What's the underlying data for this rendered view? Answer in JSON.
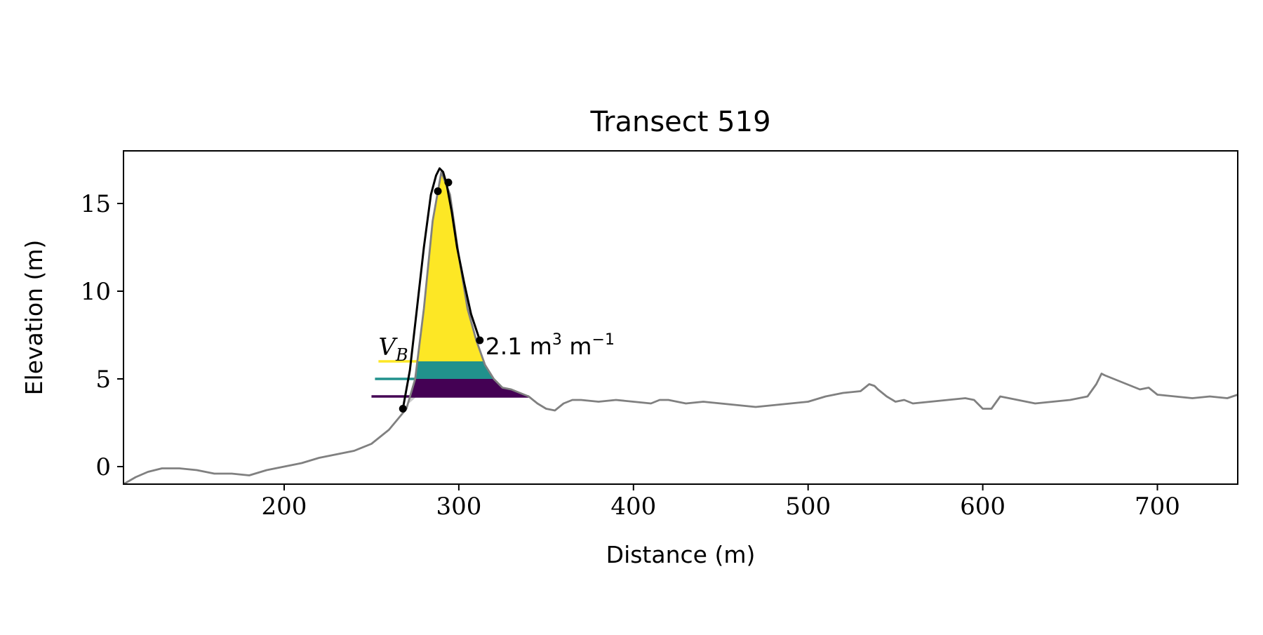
{
  "chart_data": {
    "type": "line",
    "title": "Transect 519",
    "xlabel": "Distance (m)",
    "ylabel": "Elevation (m)",
    "xlim": [
      108,
      746
    ],
    "ylim": [
      -1,
      18
    ],
    "xticks": [
      200,
      300,
      400,
      500,
      600,
      700
    ],
    "yticks": [
      0,
      5,
      10,
      15
    ],
    "grid": false,
    "legend": "none",
    "colors": {
      "profile": "#808080",
      "dune_outline": "#000000",
      "markers": "#000000",
      "level_high": "#fde725",
      "level_mid": "#21918c",
      "level_low": "#440154",
      "under_base_shade": "#cccccc"
    },
    "series": [
      {
        "role": "profile",
        "x": [
          108,
          115,
          122,
          130,
          140,
          150,
          160,
          170,
          180,
          190,
          200,
          210,
          220,
          230,
          240,
          250,
          260,
          265,
          270,
          275,
          280,
          285,
          290,
          295,
          300,
          305,
          310,
          315,
          320,
          325,
          330,
          335,
          340,
          345,
          350,
          355,
          360,
          365,
          370,
          380,
          390,
          400,
          410,
          415,
          420,
          430,
          440,
          450,
          460,
          470,
          480,
          490,
          500,
          510,
          520,
          530,
          535,
          538,
          540,
          545,
          550,
          555,
          560,
          570,
          580,
          590,
          595,
          600,
          605,
          610,
          620,
          630,
          640,
          650,
          660,
          665,
          668,
          670,
          680,
          690,
          695,
          700,
          710,
          720,
          730,
          740,
          746
        ],
        "y": [
          -1,
          -0.6,
          -0.3,
          -0.1,
          -0.1,
          -0.2,
          -0.4,
          -0.4,
          -0.5,
          -0.2,
          0.0,
          0.2,
          0.5,
          0.7,
          0.9,
          1.3,
          2.1,
          2.7,
          3.3,
          5.0,
          9.0,
          14.0,
          16.8,
          15.5,
          12.0,
          9.0,
          7.2,
          5.8,
          5.0,
          4.5,
          4.4,
          4.2,
          4.0,
          3.6,
          3.3,
          3.2,
          3.6,
          3.8,
          3.8,
          3.7,
          3.8,
          3.7,
          3.6,
          3.8,
          3.8,
          3.6,
          3.7,
          3.6,
          3.5,
          3.4,
          3.5,
          3.6,
          3.7,
          4.0,
          4.2,
          4.3,
          4.7,
          4.6,
          4.4,
          4.0,
          3.7,
          3.8,
          3.6,
          3.7,
          3.8,
          3.9,
          3.8,
          3.3,
          3.3,
          4.0,
          3.8,
          3.6,
          3.7,
          3.8,
          4.0,
          4.7,
          5.3,
          5.2,
          4.8,
          4.4,
          4.5,
          4.1,
          4.0,
          3.9,
          4.0,
          3.9,
          4.1
        ]
      },
      {
        "role": "dune_outline",
        "x": [
          268,
          272,
          276,
          280,
          284,
          287,
          289,
          291,
          293,
          296,
          299,
          303,
          307,
          312
        ],
        "y": [
          3.3,
          5.5,
          9.0,
          12.5,
          15.5,
          16.6,
          17.0,
          16.8,
          16.1,
          14.5,
          12.5,
          10.5,
          8.7,
          7.2
        ]
      },
      {
        "role": "markers",
        "x": [
          268,
          288,
          294,
          312
        ],
        "y": [
          3.3,
          15.7,
          16.2,
          7.2
        ]
      }
    ],
    "levels": [
      {
        "role": "level_high",
        "y": 6.0,
        "x_start": 254
      },
      {
        "role": "level_mid",
        "y": 5.0,
        "x_start": 252
      },
      {
        "role": "level_low",
        "y": 4.0,
        "x_start": 250
      }
    ],
    "annotations": {
      "legend_symbol_base": "V",
      "legend_symbol_sub": "B",
      "volume_value": "2.1 m",
      "volume_exp_1": "3",
      "volume_unit": " m",
      "volume_exp_2": "−1"
    }
  }
}
